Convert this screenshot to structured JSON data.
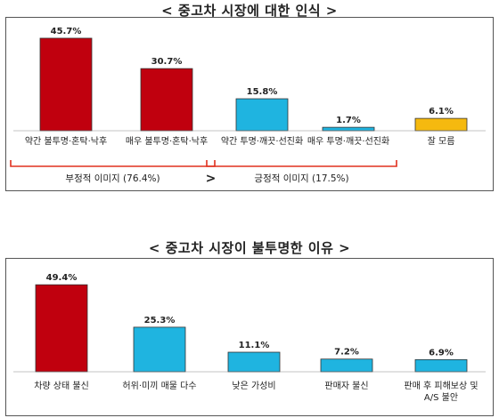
{
  "colors": {
    "red": "#c0000e",
    "blue": "#1fb4e0",
    "yellow": "#f5b90f",
    "text": "#222222",
    "bracket": "#e0301e"
  },
  "chart_data": [
    {
      "type": "bar",
      "title": "< 중고차 시장에 대한 인식 >",
      "categories": [
        "약간 불투명·혼탁·낙후",
        "매우 불투명·혼탁·낙후",
        "약간 투명·깨끗·선진화",
        "매우 투명·깨끗·선진화",
        "잘 모름"
      ],
      "values": [
        45.7,
        30.7,
        15.8,
        1.7,
        6.1
      ],
      "value_labels": [
        "45.7%",
        "30.7%",
        "15.8%",
        "1.7%",
        "6.1%"
      ],
      "bar_colors": [
        "red",
        "red",
        "blue",
        "blue",
        "yellow"
      ],
      "ylim": [
        0,
        47
      ],
      "grid": false,
      "groups": [
        {
          "label": "부정적 이미지 (76.4%)",
          "from": 0,
          "to": 1
        },
        {
          "label": "긍정적 이미지 (17.5%)",
          "from": 2,
          "to": 3
        }
      ],
      "comparison": ">"
    },
    {
      "type": "bar",
      "title": "< 중고차 시장이 불투명한 이유 >",
      "categories": [
        "차량 상태 불신",
        "허위·미끼 매물 다수",
        "낮은 가성비",
        "판매자 불신",
        "판매 후 피해보상 및|A/S 불안"
      ],
      "values": [
        49.4,
        25.3,
        11.1,
        7.2,
        6.9
      ],
      "value_labels": [
        "49.4%",
        "25.3%",
        "11.1%",
        "7.2%",
        "6.9%"
      ],
      "bar_colors": [
        "red",
        "blue",
        "blue",
        "blue",
        "blue"
      ],
      "ylim": [
        0,
        51
      ],
      "grid": false
    }
  ]
}
